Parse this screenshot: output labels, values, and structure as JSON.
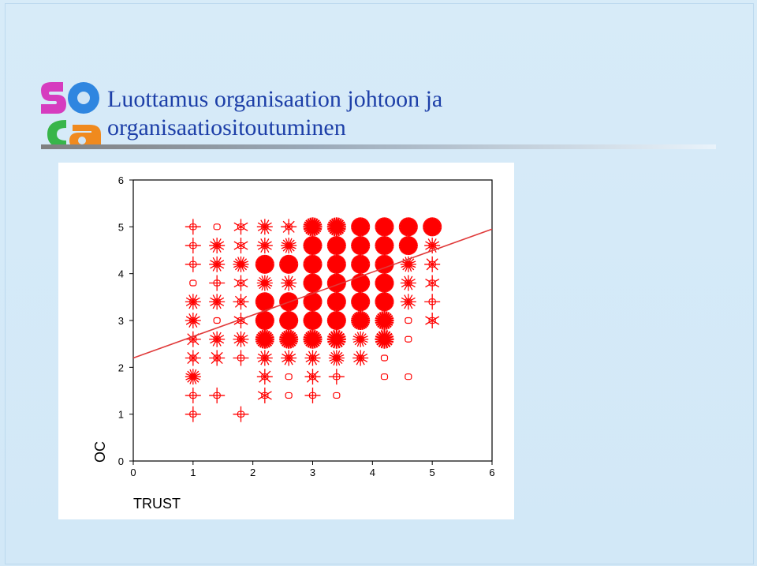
{
  "slide": {
    "title_line1": "Luottamus organisaation johtoon ja",
    "title_line2": "organisaatiositoutuminen",
    "logo_text": "soca",
    "colors": {
      "title": "#1d3fa8",
      "marker": "#ff0000",
      "fitline": "#e03a3a",
      "background": "#d5eaf8"
    }
  },
  "chart_data": {
    "type": "scatter",
    "xlabel": "TRUST",
    "ylabel": "OC",
    "xlim": [
      0,
      6
    ],
    "ylim": [
      0,
      6
    ],
    "xticks": [
      "0",
      "1",
      "2",
      "3",
      "4",
      "5",
      "6"
    ],
    "yticks": [
      "0",
      "1",
      "2",
      "3",
      "4",
      "5",
      "6"
    ],
    "x_values": [
      1,
      1.4,
      1.8,
      2.2,
      2.6,
      3,
      3.4,
      3.8,
      4.2,
      4.6,
      5
    ],
    "y_values": [
      1,
      1.4,
      1.8,
      2.2,
      2.6,
      3,
      3.4,
      3.8,
      4.2,
      4.6,
      5
    ],
    "sunflower_petals_by_row": [
      [
        2,
        0,
        2,
        0,
        0,
        0,
        0,
        0,
        0,
        0,
        0
      ],
      [
        2,
        2,
        0,
        3,
        1,
        2,
        1,
        0,
        0,
        0,
        0
      ],
      [
        8,
        0,
        0,
        4,
        1,
        4,
        2,
        0,
        1,
        1,
        0
      ],
      [
        4,
        4,
        2,
        6,
        6,
        6,
        8,
        6,
        1,
        0,
        0
      ],
      [
        4,
        6,
        6,
        12,
        12,
        12,
        10,
        8,
        10,
        1,
        0
      ],
      [
        6,
        1,
        3,
        16,
        16,
        16,
        16,
        14,
        12,
        1,
        3
      ],
      [
        6,
        6,
        4,
        16,
        16,
        16,
        16,
        16,
        16,
        6,
        2
      ],
      [
        1,
        2,
        3,
        8,
        6,
        16,
        16,
        16,
        16,
        6,
        3
      ],
      [
        2,
        6,
        8,
        16,
        16,
        16,
        16,
        16,
        16,
        8,
        4
      ],
      [
        2,
        6,
        3,
        6,
        8,
        16,
        16,
        16,
        16,
        16,
        6
      ],
      [
        2,
        1,
        3,
        6,
        4,
        12,
        12,
        16,
        16,
        16,
        16
      ]
    ],
    "fit_line": {
      "x": [
        0,
        6
      ],
      "y": [
        2.2,
        4.95
      ]
    }
  }
}
